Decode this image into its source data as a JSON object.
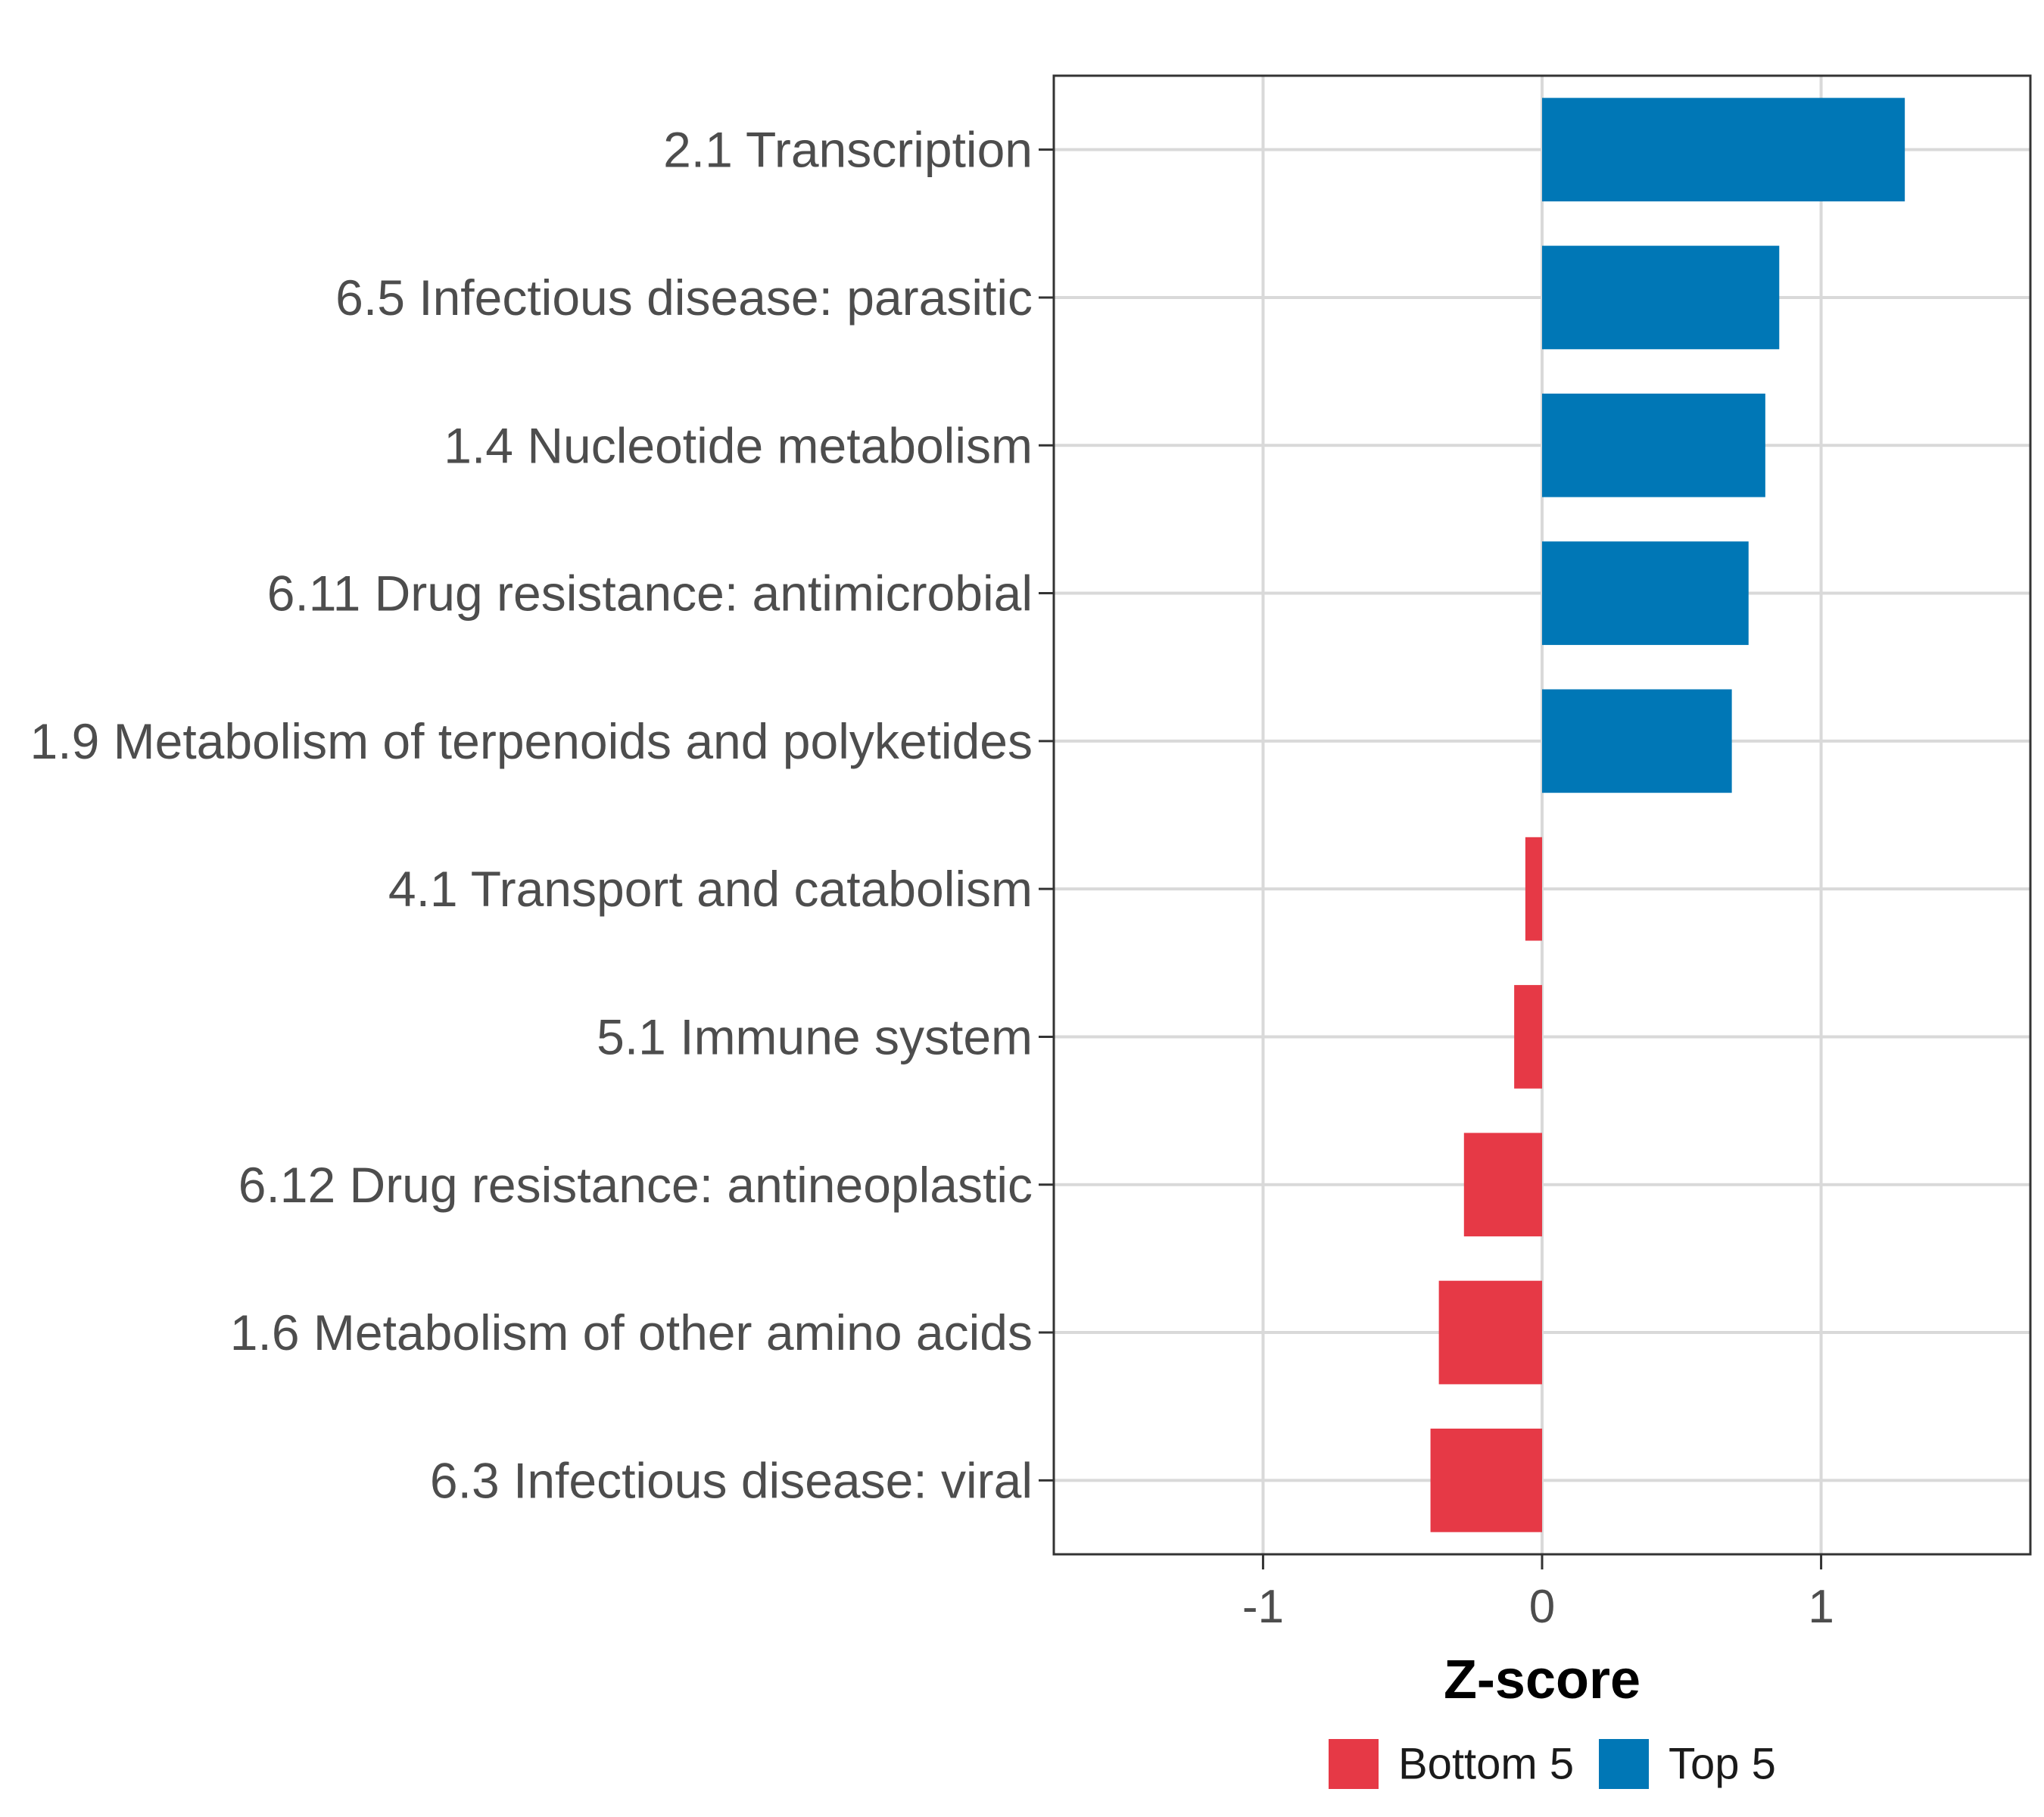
{
  "chart_data": {
    "type": "bar",
    "orientation": "horizontal",
    "xlabel": "Z-score",
    "xlim": [
      -1.75,
      1.75
    ],
    "x_ticks": [
      {
        "value": -1,
        "label": "-1"
      },
      {
        "value": 0,
        "label": "0"
      },
      {
        "value": 1,
        "label": "1"
      }
    ],
    "grid": true,
    "legend_position": "bottom",
    "groups": [
      {
        "name": "Bottom 5",
        "color": "#E63946"
      },
      {
        "name": "Top 5",
        "color": "#0077B6"
      }
    ],
    "bars": [
      {
        "category": "2.1 Transcription",
        "value": 1.3,
        "group": "Top 5"
      },
      {
        "category": "6.5 Infectious disease: parasitic",
        "value": 0.85,
        "group": "Top 5"
      },
      {
        "category": "1.4 Nucleotide metabolism",
        "value": 0.8,
        "group": "Top 5"
      },
      {
        "category": "6.11 Drug resistance: antimicrobial",
        "value": 0.74,
        "group": "Top 5"
      },
      {
        "category": "1.9 Metabolism of terpenoids and polyketides",
        "value": 0.68,
        "group": "Top 5"
      },
      {
        "category": "4.1 Transport and catabolism",
        "value": -0.06,
        "group": "Bottom 5"
      },
      {
        "category": "5.1 Immune system",
        "value": -0.1,
        "group": "Bottom 5"
      },
      {
        "category": "6.12 Drug resistance: antineoplastic",
        "value": -0.28,
        "group": "Bottom 5"
      },
      {
        "category": "1.6 Metabolism of other amino acids",
        "value": -0.37,
        "group": "Bottom 5"
      },
      {
        "category": "6.3 Infectious disease: viral",
        "value": -0.4,
        "group": "Bottom 5"
      }
    ]
  }
}
